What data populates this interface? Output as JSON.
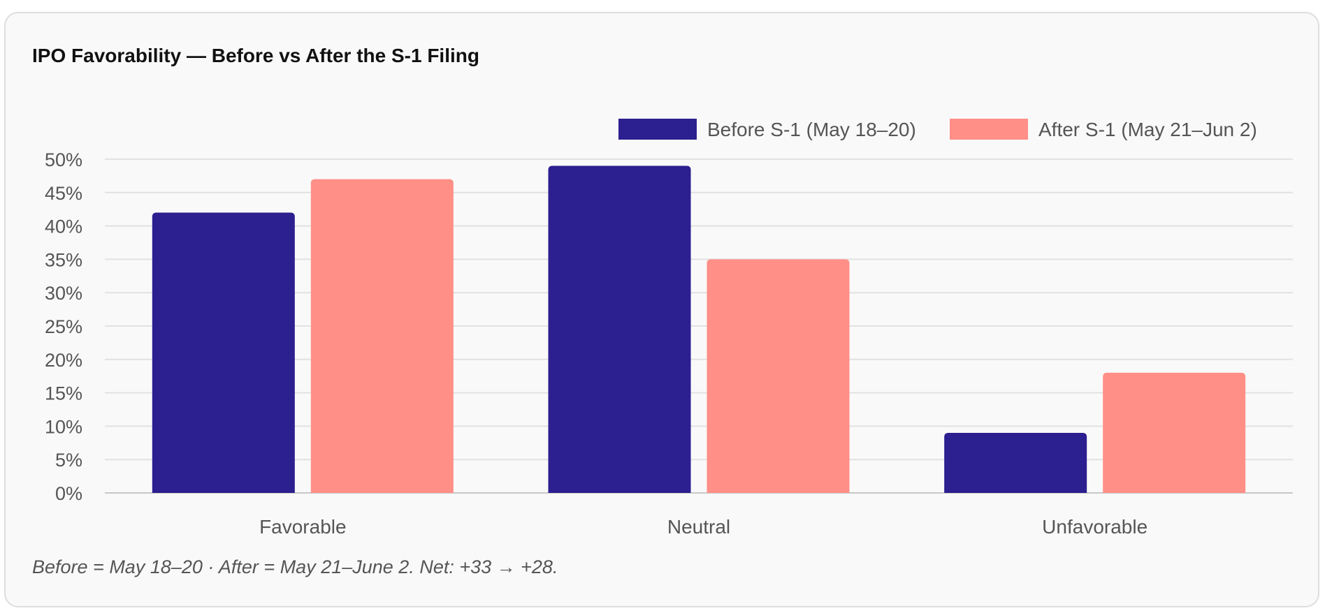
{
  "card": {
    "title": "IPO Favorability — Before vs After the S-1 Filing",
    "note": "Before = May 18–20 · After = May 21–June 2. Net: +33 → +28."
  },
  "chart_data": {
    "type": "bar",
    "title": "IPO Favorability — Before vs After the S-1 Filing",
    "categories": [
      "Favorable",
      "Neutral",
      "Unfavorable"
    ],
    "series": [
      {
        "name": "Before S-1 (May 18–20)",
        "values": [
          42,
          49,
          9
        ],
        "color": "#2c1f8f"
      },
      {
        "name": "After S-1 (May 21–Jun 2)",
        "values": [
          47,
          35,
          18
        ],
        "color": "#ff8f87"
      }
    ],
    "ylim": [
      0,
      50
    ],
    "yticks": [
      0,
      5,
      10,
      15,
      20,
      25,
      30,
      35,
      40,
      45,
      50
    ],
    "ytick_labels": [
      "0%",
      "5%",
      "10%",
      "15%",
      "20%",
      "25%",
      "30%",
      "35%",
      "40%",
      "45%",
      "50%"
    ],
    "xlabel": "",
    "ylabel": "",
    "grid": true,
    "legend": "top-right"
  }
}
